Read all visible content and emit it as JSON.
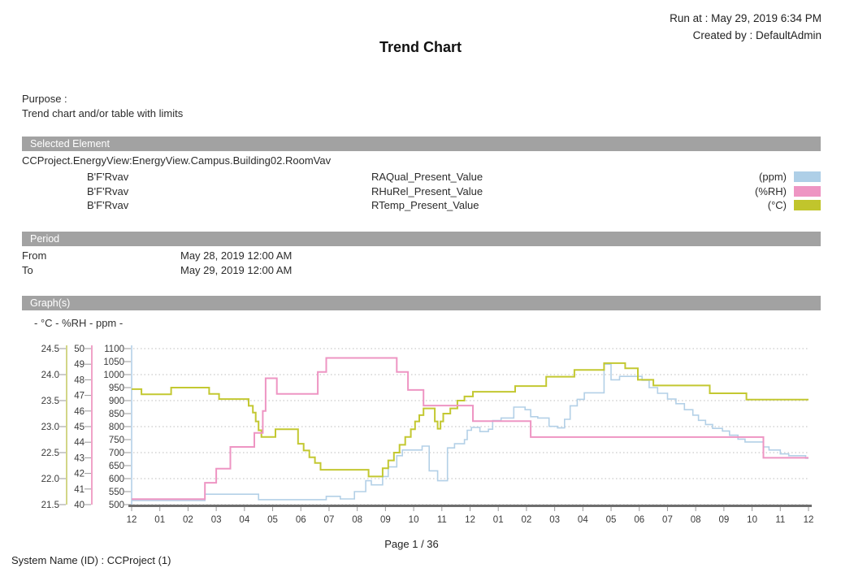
{
  "header": {
    "run_at": "Run at : May 29, 2019 6:34 PM",
    "created_by": "Created by : DefaultAdmin",
    "title": "Trend Chart"
  },
  "purpose": {
    "label": "Purpose :",
    "text": "Trend chart and/or table with limits"
  },
  "selected_element": {
    "section_title": "Selected Element",
    "path": "CCProject.EnergyView:EnergyView.Campus.Building02.RoomVav",
    "rows": [
      {
        "name": "B'F'Rvav",
        "signal": "RAQual_Present_Value",
        "unit": "(ppm)",
        "color": "#aecfe7"
      },
      {
        "name": "B'F'Rvav",
        "signal": "RHuRel_Present_Value",
        "unit": "(%RH)",
        "color": "#ee95c3"
      },
      {
        "name": "B'F'Rvav",
        "signal": "RTemp_Present_Value",
        "unit": "(°C)",
        "color": "#c1c52c"
      }
    ]
  },
  "period": {
    "section_title": "Period",
    "from_label": "From",
    "from_value": "May 28, 2019 12:00 AM",
    "to_label": "To",
    "to_value": "May 29, 2019 12:00 AM"
  },
  "graphs": {
    "section_title": "Graph(s)",
    "legend": "- °C - %RH - ppm -"
  },
  "footer": {
    "page": "Page  1 / 36",
    "system_name": "System Name (ID) : CCProject (1)"
  },
  "chart_data": {
    "type": "line",
    "step": true,
    "grid": "horizontal-dotted",
    "x_axis": {
      "labels": [
        "12",
        "01",
        "02",
        "03",
        "04",
        "05",
        "06",
        "07",
        "08",
        "09",
        "10",
        "11",
        "12",
        "01",
        "02",
        "03",
        "04",
        "05",
        "06",
        "07",
        "08",
        "09",
        "10",
        "11",
        "12"
      ],
      "hours_range": [
        0,
        24
      ],
      "line_color": "#6e6e6e",
      "tick_color": "#9a9a9a",
      "label_color": "#3b3b3b"
    },
    "axes": [
      {
        "unit": "°C",
        "min": 21.5,
        "max": 24.5,
        "tick_step": 0.5,
        "line_color": "#d2d687",
        "tick_labels": [
          "24.5",
          "24.0",
          "23.5",
          "23.0",
          "22.5",
          "22.0",
          "21.5"
        ]
      },
      {
        "unit": "%RH",
        "min": 40,
        "max": 50,
        "tick_step": 1,
        "line_color": "#f0a3c8",
        "tick_labels": [
          "50",
          "49",
          "48",
          "47",
          "46",
          "45",
          "44",
          "43",
          "42",
          "41",
          "40"
        ]
      },
      {
        "unit": "ppm",
        "min": 500,
        "max": 1100,
        "tick_step": 50,
        "line_color": "#c3d9ec",
        "tick_labels": [
          "1100",
          "1050",
          "1000",
          "950",
          "900",
          "850",
          "800",
          "750",
          "700",
          "650",
          "600",
          "550",
          "500"
        ],
        "grid_values": [
          1100,
          1000,
          900,
          800,
          700,
          600,
          500
        ]
      }
    ],
    "series": [
      {
        "name": "RAQual_Present_Value",
        "unit": "ppm",
        "color": "#b3d0e7",
        "width": 1.6,
        "points": [
          [
            0,
            516
          ],
          [
            2.6,
            540
          ],
          [
            4.5,
            519
          ],
          [
            6.9,
            532
          ],
          [
            7.4,
            522
          ],
          [
            7.9,
            550
          ],
          [
            8.3,
            592
          ],
          [
            8.5,
            576
          ],
          [
            8.9,
            608
          ],
          [
            9.1,
            645
          ],
          [
            9.4,
            688
          ],
          [
            9.6,
            710
          ],
          [
            10.3,
            725
          ],
          [
            10.55,
            630
          ],
          [
            10.85,
            592
          ],
          [
            11.2,
            718
          ],
          [
            11.45,
            734
          ],
          [
            11.8,
            750
          ],
          [
            11.9,
            786
          ],
          [
            12.05,
            797
          ],
          [
            12.35,
            781
          ],
          [
            12.65,
            790
          ],
          [
            12.8,
            823
          ],
          [
            13.1,
            833
          ],
          [
            13.55,
            875
          ],
          [
            13.95,
            865
          ],
          [
            14.15,
            838
          ],
          [
            14.4,
            833
          ],
          [
            14.8,
            801
          ],
          [
            15.1,
            795
          ],
          [
            15.35,
            828
          ],
          [
            15.55,
            880
          ],
          [
            15.8,
            905
          ],
          [
            16.05,
            930
          ],
          [
            16.75,
            1040
          ],
          [
            17.0,
            980
          ],
          [
            17.3,
            993
          ],
          [
            18.1,
            978
          ],
          [
            18.35,
            950
          ],
          [
            18.65,
            928
          ],
          [
            19.0,
            906
          ],
          [
            19.3,
            888
          ],
          [
            19.6,
            865
          ],
          [
            19.9,
            844
          ],
          [
            20.1,
            824
          ],
          [
            20.35,
            808
          ],
          [
            20.6,
            793
          ],
          [
            20.95,
            783
          ],
          [
            21.2,
            767
          ],
          [
            21.5,
            752
          ],
          [
            21.75,
            741
          ],
          [
            22.4,
            722
          ],
          [
            22.6,
            710
          ],
          [
            23.0,
            695
          ],
          [
            23.3,
            688
          ],
          [
            23.9,
            678
          ],
          [
            24,
            678
          ]
        ]
      },
      {
        "name": "RTemp_Present_Value",
        "unit": "°C",
        "color": "#c3c831",
        "width": 2,
        "points": [
          [
            0,
            23.72
          ],
          [
            0.35,
            23.62
          ],
          [
            1.4,
            23.75
          ],
          [
            2.75,
            23.63
          ],
          [
            3.1,
            23.53
          ],
          [
            4.15,
            23.4
          ],
          [
            4.3,
            23.27
          ],
          [
            4.4,
            23.1
          ],
          [
            4.5,
            22.93
          ],
          [
            4.6,
            22.8
          ],
          [
            5.1,
            22.95
          ],
          [
            5.9,
            22.67
          ],
          [
            6.1,
            22.54
          ],
          [
            6.3,
            22.41
          ],
          [
            6.5,
            22.3
          ],
          [
            6.7,
            22.17
          ],
          [
            8.4,
            22.04
          ],
          [
            8.9,
            22.2
          ],
          [
            9.1,
            22.35
          ],
          [
            9.3,
            22.5
          ],
          [
            9.5,
            22.65
          ],
          [
            9.7,
            22.8
          ],
          [
            9.9,
            22.95
          ],
          [
            10.05,
            23.1
          ],
          [
            10.2,
            23.22
          ],
          [
            10.35,
            23.35
          ],
          [
            10.75,
            23.1
          ],
          [
            10.85,
            22.96
          ],
          [
            10.95,
            23.1
          ],
          [
            11.05,
            23.25
          ],
          [
            11.3,
            23.35
          ],
          [
            11.55,
            23.5
          ],
          [
            11.8,
            23.58
          ],
          [
            12.1,
            23.67
          ],
          [
            13.6,
            23.78
          ],
          [
            14.7,
            23.96
          ],
          [
            15.7,
            24.09
          ],
          [
            16.75,
            24.22
          ],
          [
            17.5,
            24.12
          ],
          [
            17.95,
            23.9
          ],
          [
            18.5,
            23.79
          ],
          [
            20.5,
            23.64
          ],
          [
            21.8,
            23.52
          ],
          [
            24,
            23.52
          ]
        ]
      },
      {
        "name": "RHuRel_Present_Value",
        "unit": "%RH",
        "color": "#ee95c3",
        "width": 2,
        "points": [
          [
            0,
            40.35
          ],
          [
            2.6,
            41.4
          ],
          [
            3.0,
            42.3
          ],
          [
            3.5,
            43.7
          ],
          [
            4.35,
            44.6
          ],
          [
            4.65,
            46.0
          ],
          [
            4.75,
            48.1
          ],
          [
            5.15,
            47.1
          ],
          [
            6.6,
            48.5
          ],
          [
            6.9,
            49.4
          ],
          [
            9.4,
            48.5
          ],
          [
            9.8,
            47.35
          ],
          [
            10.35,
            46.35
          ],
          [
            12.1,
            45.35
          ],
          [
            14.15,
            44.33
          ],
          [
            22.4,
            43.0
          ],
          [
            24,
            43.0
          ]
        ]
      }
    ]
  }
}
